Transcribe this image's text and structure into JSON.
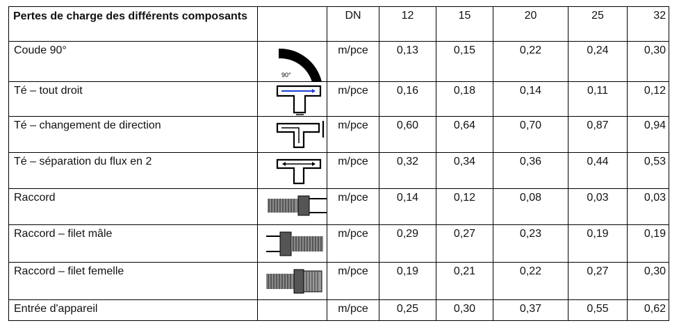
{
  "table": {
    "title": "Pertes de charge des différents composants",
    "dn_label": "DN",
    "dn_values": [
      "12",
      "15",
      "20",
      "25",
      "32"
    ],
    "rows": [
      {
        "label": "Coude 90°",
        "icon": "elbow-90-icon",
        "icon_text": "90°",
        "unit": "m/pce",
        "values": [
          "0,13",
          "0,15",
          "0,22",
          "0,24",
          "0,30"
        ]
      },
      {
        "label": "Té – tout droit",
        "icon": "tee-straight-icon",
        "unit": "m/pce",
        "values": [
          "0,16",
          "0,18",
          "0,14",
          "0,11",
          "0,12"
        ]
      },
      {
        "label": "Té – changement de direction",
        "icon": "tee-branch-icon",
        "unit": "m/pce",
        "values": [
          "0,60",
          "0,64",
          "0,70",
          "0,87",
          "0,94"
        ]
      },
      {
        "label": "Té – séparation du flux en 2",
        "icon": "tee-split-icon",
        "unit": "m/pce",
        "values": [
          "0,32",
          "0,34",
          "0,36",
          "0,44",
          "0,53"
        ]
      },
      {
        "label": "Raccord",
        "icon": "union-fitting-icon",
        "unit": "m/pce",
        "values": [
          "0,14",
          "0,12",
          "0,08",
          "0,03",
          "0,03"
        ]
      },
      {
        "label": "Raccord – filet mâle",
        "icon": "male-thread-fitting-icon",
        "unit": "m/pce",
        "values": [
          "0,29",
          "0,27",
          "0,23",
          "0,19",
          "0,19"
        ]
      },
      {
        "label": "Raccord – filet femelle",
        "icon": "female-thread-fitting-icon",
        "unit": "m/pce",
        "values": [
          "0,19",
          "0,21",
          "0,22",
          "0,27",
          "0,30"
        ]
      },
      {
        "label": "Entrée d'appareil",
        "icon": "",
        "unit": "m/pce",
        "values": [
          "0,25",
          "0,30",
          "0,37",
          "0,55",
          "0,62"
        ]
      }
    ]
  }
}
